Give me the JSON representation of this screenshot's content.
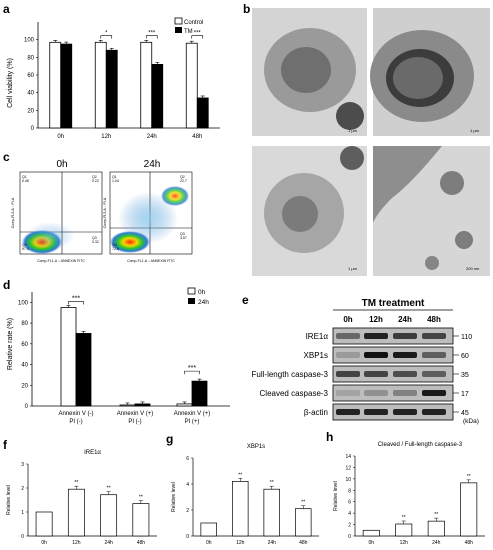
{
  "letters": {
    "a": "a",
    "b": "b",
    "c": "c",
    "d": "d",
    "e": "e",
    "f": "f",
    "g": "g",
    "h": "h"
  },
  "panel_a": {
    "ylabel": "Cell viability (%)",
    "yticks": [
      "0",
      "20",
      "40",
      "60",
      "80",
      "100"
    ],
    "legend": [
      "Control",
      "TM"
    ],
    "sig": [
      "*",
      "***",
      "***"
    ]
  },
  "panel_b": {
    "scales": [
      "1 μm",
      "1 μm",
      "1 μm",
      "200 nm"
    ]
  },
  "panel_c": {
    "titles": [
      "0h",
      "24h"
    ],
    "left_quadrants": [
      "Q1",
      "Q2",
      "Q3",
      "Q4"
    ],
    "left_values": [
      "0.46",
      "0.22",
      "0.32",
      "97.4"
    ],
    "right_quadrants": [
      "Q1",
      "Q2",
      "Q3",
      "Q4"
    ],
    "right_values": [
      "1.04",
      "22.7",
      "3.57",
      "72.8"
    ],
    "xlabel": "Comp-FL1-A :: ANNEXIN FITC",
    "ylabel": "Comp-FL3-A :: PI-A"
  },
  "panel_d": {
    "ylabel": "Relative rate (%)",
    "yticks": [
      "0",
      "20",
      "40",
      "60",
      "80",
      "100"
    ],
    "legend": [
      "0h",
      "24h"
    ],
    "groups": [
      "Annexin V (-)\nPI (-)",
      "Annexin V (+)\nPI (-)",
      "Annexin V (+)\nPI (+)"
    ],
    "group_l1": [
      "Annexin V (-)",
      "Annexin V (+)",
      "Annexin V (+)"
    ],
    "group_l2": [
      "PI (-)",
      "PI (-)",
      "PI (+)"
    ],
    "sig": [
      "***",
      "***"
    ]
  },
  "panel_e": {
    "title": "TM treatment",
    "times": [
      "0h",
      "12h",
      "24h",
      "48h"
    ],
    "proteins": [
      "IRE1α",
      "XBP1s",
      "Full-length caspase-3",
      "Cleaved caspase-3",
      "β-actin"
    ],
    "kda": [
      "110",
      "60",
      "35",
      "17",
      "45"
    ],
    "kda_unit": "(kDa)"
  },
  "chart_data": [
    {
      "type": "bar",
      "panel": "a",
      "categories": [
        "0h",
        "12h",
        "24h",
        "48h"
      ],
      "series": [
        {
          "name": "Control",
          "values": [
            97,
            97,
            97,
            96
          ],
          "color": "#ffffff"
        },
        {
          "name": "TM",
          "values": [
            95,
            88,
            72,
            34
          ],
          "color": "#000000"
        }
      ],
      "ylabel": "Cell viability (%)",
      "ylim": [
        0,
        120
      ]
    },
    {
      "type": "bar",
      "panel": "d",
      "categories": [
        "Annexin V (-) PI (-)",
        "Annexin V (+) PI (-)",
        "Annexin V (+) PI (+)"
      ],
      "series": [
        {
          "name": "0h",
          "values": [
            95,
            1,
            2
          ],
          "color": "#ffffff"
        },
        {
          "name": "24h",
          "values": [
            70,
            2,
            24
          ],
          "color": "#000000"
        }
      ],
      "ylabel": "Relative rate (%)",
      "ylim": [
        0,
        110
      ]
    },
    {
      "type": "bar",
      "panel": "f",
      "title": "IRE1α",
      "categories": [
        "0h",
        "12h",
        "24h",
        "48h"
      ],
      "values": [
        1.0,
        1.95,
        1.72,
        1.35
      ],
      "sig": [
        "",
        "**",
        "**",
        "**"
      ],
      "ylabel": "Relative level",
      "ylim": [
        0,
        3
      ]
    },
    {
      "type": "bar",
      "panel": "g",
      "title": "XBP1s",
      "categories": [
        "0h",
        "12h",
        "24h",
        "48h"
      ],
      "values": [
        1.0,
        4.2,
        3.6,
        2.1
      ],
      "sig": [
        "",
        "**",
        "**",
        "**"
      ],
      "ylabel": "Relative level",
      "ylim": [
        0,
        6
      ]
    },
    {
      "type": "bar",
      "panel": "h",
      "title": "Cleaved / Full-length caspase-3",
      "categories": [
        "0h",
        "12h",
        "24h",
        "48h"
      ],
      "values": [
        1.0,
        2.1,
        2.6,
        9.3
      ],
      "sig": [
        "",
        "**",
        "**",
        "**"
      ],
      "ylabel": "Relative level",
      "ylim": [
        0,
        14
      ]
    }
  ]
}
